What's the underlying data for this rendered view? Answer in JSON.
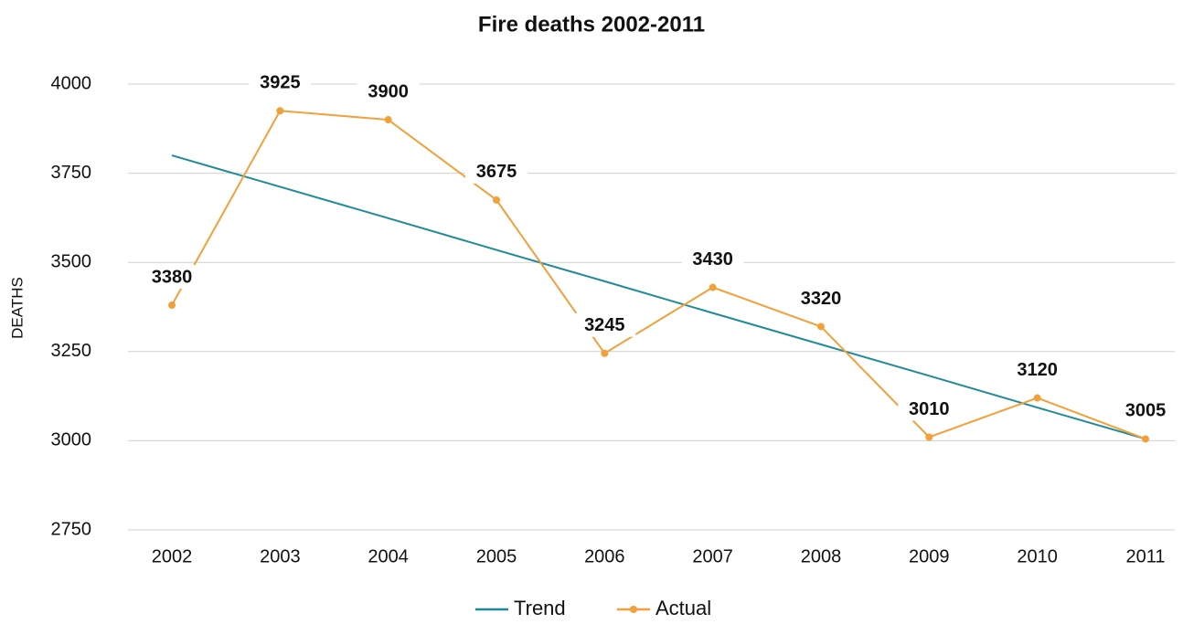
{
  "chart_data": {
    "type": "line",
    "title": "Fire deaths 2002-2011",
    "y_label": "DEATHS",
    "categories": [
      "2002",
      "2003",
      "2004",
      "2005",
      "2006",
      "2007",
      "2008",
      "2009",
      "2010",
      "2011"
    ],
    "series": [
      {
        "name": "Trend",
        "color": "#1f8a99",
        "values": [
          3800,
          3712,
          3624,
          3535,
          3447,
          3358,
          3270,
          3182,
          3093,
          3005
        ],
        "labels": false
      },
      {
        "name": "Actual",
        "color": "#f2a03a",
        "values": [
          3380,
          3925,
          3900,
          3675,
          3245,
          3430,
          3320,
          3010,
          3120,
          3005
        ],
        "labels": true
      }
    ],
    "ylim": [
      2750,
      4000
    ],
    "yticks": [
      2750,
      3000,
      3250,
      3500,
      3750,
      4000
    ],
    "grid": true,
    "legend": "bottom"
  }
}
